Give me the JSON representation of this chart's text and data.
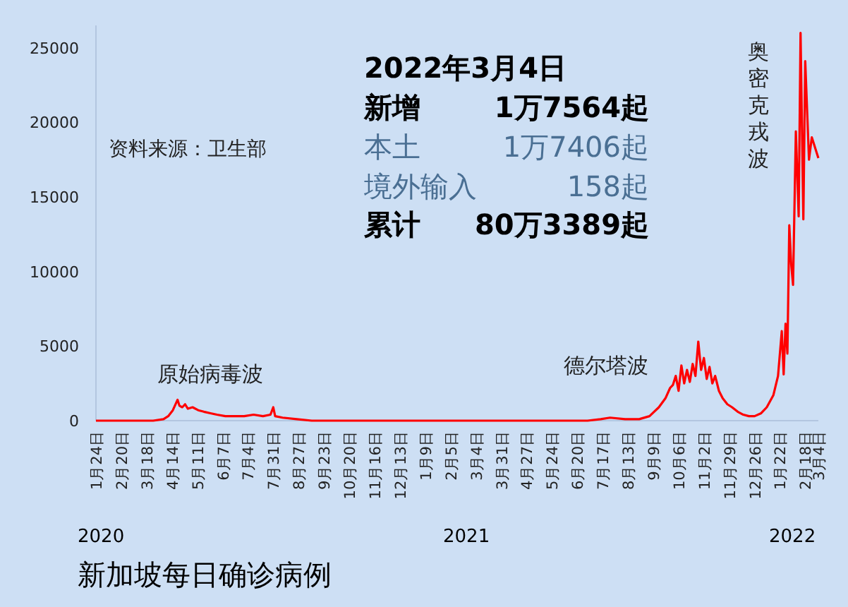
{
  "chart_data": {
    "type": "line",
    "title": "新加坡每日确诊病例",
    "annotations": [
      "2022年3月4日",
      "新增",
      "1万7564起",
      "本土",
      "1万7406起",
      "境外输入",
      "158起",
      "累计",
      "80万3389起",
      "资料来源：卫生部",
      "2020",
      "2021",
      "2022",
      {
        "text": "原始病毒波",
        "x": "2020-04-20",
        "y": 1400
      },
      {
        "text": "德尔塔波",
        "x": "2021-09-22",
        "y": 1500
      },
      {
        "text": "奥密克戎波",
        "x": "2022-02-01",
        "y": 13100
      }
    ],
    "xlim": [
      "2020-01-24",
      "2022-03-04"
    ],
    "xticks": [
      {
        "value": "2020-01-24",
        "label": "1月24日"
      },
      {
        "value": "2020-02-20",
        "label": "2月20日"
      },
      {
        "value": "2020-03-18",
        "label": "3月18日"
      },
      {
        "value": "2020-04-14",
        "label": "4月14日"
      },
      {
        "value": "2020-05-11",
        "label": "5月11日"
      },
      {
        "value": "2020-06-07",
        "label": "6月7日"
      },
      {
        "value": "2020-07-04",
        "label": "7月4日"
      },
      {
        "value": "2020-07-31",
        "label": "7月31日"
      },
      {
        "value": "2020-08-27",
        "label": "8月27日"
      },
      {
        "value": "2020-09-23",
        "label": "9月23日"
      },
      {
        "value": "2020-10-20",
        "label": "10月20日"
      },
      {
        "value": "2020-11-16",
        "label": "11月16日"
      },
      {
        "value": "2020-12-13",
        "label": "12月13日"
      },
      {
        "value": "2021-01-09",
        "label": "1月9日"
      },
      {
        "value": "2021-02-05",
        "label": "2月5日"
      },
      {
        "value": "2021-03-04",
        "label": "3月4日"
      },
      {
        "value": "2021-03-31",
        "label": "3月31日"
      },
      {
        "value": "2021-04-27",
        "label": "4月27日"
      },
      {
        "value": "2021-05-24",
        "label": "5月24日"
      },
      {
        "value": "2021-06-20",
        "label": "6月20日"
      },
      {
        "value": "2021-07-17",
        "label": "7月17日"
      },
      {
        "value": "2021-08-13",
        "label": "8月13日"
      },
      {
        "value": "2021-09-09",
        "label": "9月9日"
      },
      {
        "value": "2021-10-06",
        "label": "10月6日"
      },
      {
        "value": "2021-11-02",
        "label": "11月2日"
      },
      {
        "value": "2021-11-29",
        "label": "11月29日"
      },
      {
        "value": "2021-12-26",
        "label": "12月26日"
      },
      {
        "value": "2022-01-22",
        "label": "1月22日"
      },
      {
        "value": "2022-02-18",
        "label": "2月18日"
      },
      {
        "value": "2022-03-04",
        "label": "3月4日"
      }
    ],
    "ylim": [
      0,
      26500
    ],
    "yticks": [
      0,
      5000,
      10000,
      15000,
      20000,
      25000
    ],
    "grid": false,
    "marker": "none",
    "line_style": "solid",
    "series": [
      {
        "color": "#ff0000",
        "x": [
          "2020-01-24",
          "2020-02-20",
          "2020-03-10",
          "2020-03-25",
          "2020-04-05",
          "2020-04-10",
          "2020-04-15",
          "2020-04-20",
          "2020-04-22",
          "2020-04-25",
          "2020-04-28",
          "2020-05-01",
          "2020-05-06",
          "2020-05-12",
          "2020-05-18",
          "2020-05-25",
          "2020-06-01",
          "2020-06-10",
          "2020-06-20",
          "2020-06-30",
          "2020-07-10",
          "2020-07-20",
          "2020-07-28",
          "2020-07-31",
          "2020-08-02",
          "2020-08-10",
          "2020-08-25",
          "2020-09-10",
          "2020-10-01",
          "2020-12-01",
          "2021-02-01",
          "2021-04-01",
          "2021-05-15",
          "2021-06-20",
          "2021-07-01",
          "2021-07-15",
          "2021-07-25",
          "2021-08-10",
          "2021-08-25",
          "2021-09-05",
          "2021-09-15",
          "2021-09-22",
          "2021-09-27",
          "2021-09-30",
          "2021-10-03",
          "2021-10-06",
          "2021-10-09",
          "2021-10-12",
          "2021-10-15",
          "2021-10-18",
          "2021-10-21",
          "2021-10-24",
          "2021-10-27",
          "2021-10-30",
          "2021-11-02",
          "2021-11-05",
          "2021-11-08",
          "2021-11-11",
          "2021-11-14",
          "2021-11-18",
          "2021-11-22",
          "2021-11-27",
          "2021-12-02",
          "2021-12-08",
          "2021-12-14",
          "2021-12-20",
          "2021-12-26",
          "2022-01-02",
          "2022-01-08",
          "2022-01-15",
          "2022-01-20",
          "2022-01-24",
          "2022-01-26",
          "2022-01-28",
          "2022-01-30",
          "2022-02-01",
          "2022-02-03",
          "2022-02-05",
          "2022-02-08",
          "2022-02-11",
          "2022-02-13",
          "2022-02-16",
          "2022-02-18",
          "2022-02-22",
          "2022-02-25",
          "2022-03-04"
        ],
        "values": [
          0,
          0,
          0,
          0,
          100,
          300,
          700,
          1400,
          1000,
          900,
          1100,
          800,
          900,
          700,
          600,
          500,
          400,
          300,
          300,
          300,
          400,
          300,
          400,
          900,
          300,
          200,
          100,
          0,
          0,
          0,
          0,
          0,
          0,
          0,
          0,
          100,
          200,
          100,
          100,
          300,
          900,
          1500,
          2200,
          2400,
          3000,
          2000,
          3700,
          2500,
          3400,
          2600,
          3800,
          3000,
          5300,
          3400,
          4200,
          2800,
          3600,
          2500,
          3000,
          2000,
          1500,
          1100,
          900,
          600,
          400,
          300,
          300,
          500,
          900,
          1700,
          3000,
          6000,
          3100,
          6500,
          4500,
          13100,
          10500,
          9100,
          19400,
          13700,
          26000,
          13500,
          24100,
          17500,
          19000,
          17600
        ]
      }
    ]
  }
}
